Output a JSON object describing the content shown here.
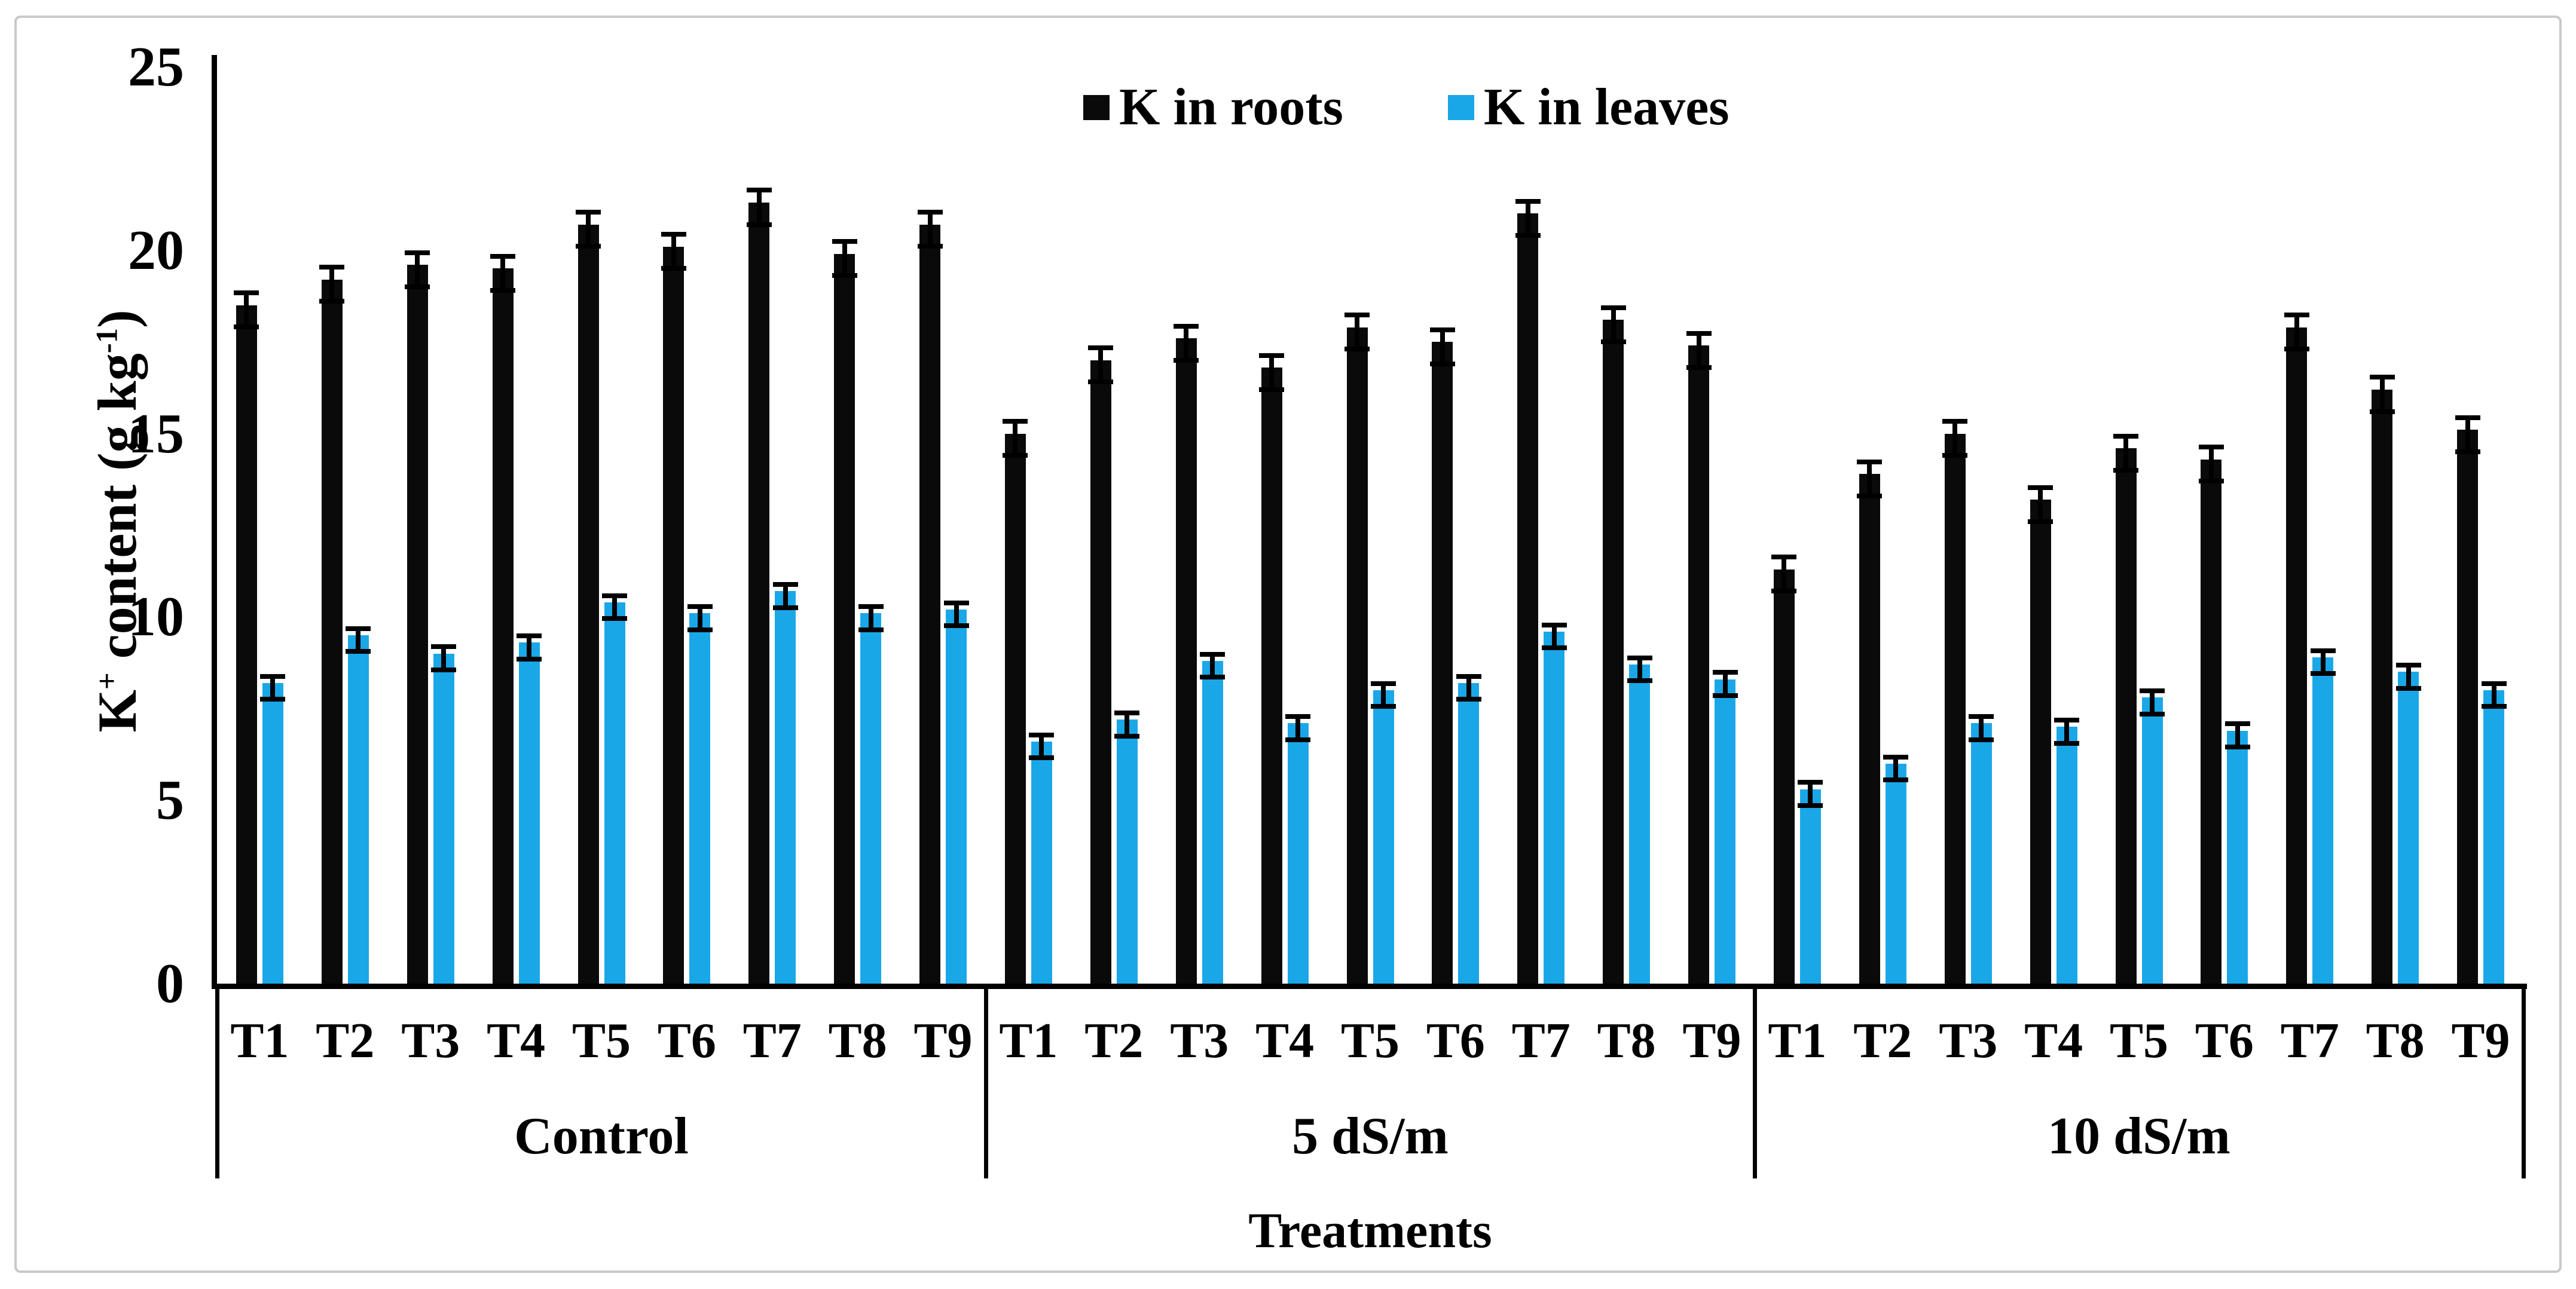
{
  "figure": {
    "y_axis_title_parts": {
      "base": "K",
      "sup": "+",
      "rest": " content (g kg",
      "sup2": "-1",
      "close": ")"
    }
  },
  "chart_data": {
    "type": "bar",
    "title": "",
    "xlabel": "Treatments",
    "ylabel": "K+ content (g kg-1)",
    "ylim": [
      0,
      25
    ],
    "yticks": [
      0,
      5,
      10,
      15,
      20,
      25
    ],
    "grid": false,
    "legend_position": "top-center",
    "group_labels": [
      "Control",
      "5 dS/m",
      "10 dS/m"
    ],
    "categories_per_group": [
      "T1",
      "T2",
      "T3",
      "T4",
      "T5",
      "T6",
      "T7",
      "T8",
      "T9"
    ],
    "series": [
      {
        "name": "K in roots",
        "color": "#0a0a0a",
        "error_bar": 0.4,
        "values": [
          [
            18.5,
            19.2,
            19.6,
            19.5,
            20.7,
            20.1,
            21.3,
            19.9,
            20.7
          ],
          [
            15.0,
            17.0,
            17.6,
            16.8,
            17.9,
            17.5,
            21.0,
            18.1,
            17.4
          ],
          [
            11.3,
            13.9,
            15.0,
            13.2,
            14.6,
            14.3,
            17.9,
            16.2,
            15.1
          ]
        ]
      },
      {
        "name": "K in leaves",
        "color": "#1aa7e8",
        "error_bar": 0.25,
        "values": [
          [
            8.2,
            9.5,
            9.0,
            9.3,
            10.4,
            10.1,
            10.7,
            10.1,
            10.2
          ],
          [
            6.6,
            7.2,
            8.8,
            7.1,
            8.0,
            8.2,
            9.6,
            8.7,
            8.3
          ],
          [
            5.3,
            6.0,
            7.1,
            7.0,
            7.8,
            6.9,
            8.9,
            8.5,
            8.0
          ]
        ]
      }
    ]
  }
}
